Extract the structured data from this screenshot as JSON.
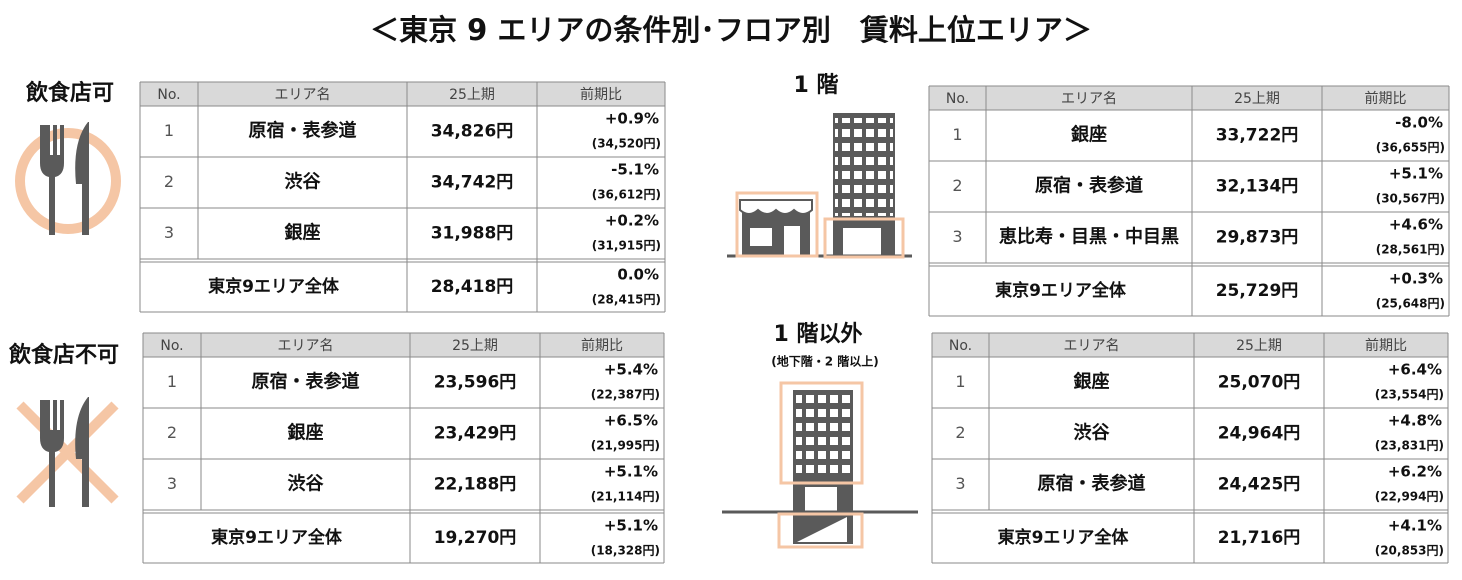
{
  "title": "＜東京 9 エリアの条件別･フロア別　賃料上位エリア＞",
  "sections": [
    {
      "label": "飲食店可",
      "table": {
        "header": [
          "No.",
          "エリア名",
          "25上期",
          "前期比"
        ],
        "rows": [
          [
            "1",
            "原宿・表参道",
            "34,826円",
            "+0.9%",
            "(34,520円)"
          ],
          [
            "2",
            "渋谷",
            "34,742円",
            "-5.1%",
            "(36,612円)"
          ],
          [
            "3",
            "銀座",
            "31,988円",
            "+0.2%",
            "(31,915円)"
          ]
        ],
        "total": [
          "東京9エリア全体",
          "28,418円",
          "0.0%",
          "(28,415円)"
        ]
      }
    },
    {
      "label": "飲食店不可",
      "table": {
        "header": [
          "No.",
          "エリア名",
          "25上期",
          "前期比"
        ],
        "rows": [
          [
            "1",
            "原宿・表参道",
            "23,596円",
            "+5.4%",
            "(22,387円)"
          ],
          [
            "2",
            "銀座",
            "23,429円",
            "+6.5%",
            "(21,995円)"
          ],
          [
            "3",
            "渋谷",
            "22,188円",
            "+5.1%",
            "(21,114円)"
          ]
        ],
        "total": [
          "東京9エリア全体",
          "19,270円",
          "+5.1%",
          "(18,328円)"
        ]
      }
    },
    {
      "label": "1 階",
      "table": {
        "header": [
          "No.",
          "エリア名",
          "25上期",
          "前期比"
        ],
        "rows": [
          [
            "1",
            "銀座",
            "33,722円",
            "-8.0%",
            "(36,655円)"
          ],
          [
            "2",
            "原宿・表参道",
            "32,134円",
            "+5.1%",
            "(30,567円)"
          ],
          [
            "3",
            "恵比寿・目黒・中目黒",
            "29,873円",
            "+4.6%",
            "(28,561円)"
          ]
        ],
        "total": [
          "東京9エリア全体",
          "25,729円",
          "+0.3%",
          "(25,648円)"
        ]
      }
    },
    {
      "label": "1 階以外",
      "sublabel": "(地下階・2 階以上)",
      "table": {
        "header": [
          "No.",
          "エリア名",
          "25上期",
          "前期比"
        ],
        "rows": [
          [
            "1",
            "銀座",
            "25,070円",
            "+6.4%",
            "(23,554円)"
          ],
          [
            "2",
            "渋谷",
            "24,964円",
            "+4.8%",
            "(23,831円)"
          ],
          [
            "3",
            "原宿・表参道",
            "24,425円",
            "+6.2%",
            "(22,994円)"
          ]
        ],
        "total": [
          "東京9エリア全体",
          "21,716円",
          "+4.1%",
          "(20,853円)"
        ]
      }
    }
  ]
}
